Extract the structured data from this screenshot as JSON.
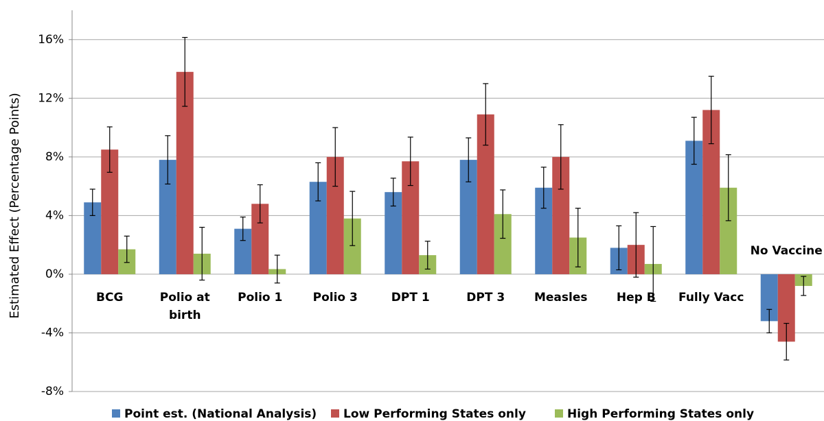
{
  "chart_data": {
    "type": "bar",
    "y_label": "Estimated Effect (Percentage Points)",
    "categories": [
      "BCG",
      "Polio at birth",
      "Polio 1",
      "Polio 3",
      "DPT 1",
      "DPT 3",
      "Measles",
      "Hep B",
      "Fully Vacc",
      "No Vaccine"
    ],
    "series": [
      {
        "name": "Point est. (National Analysis)",
        "color": "#4f81bd",
        "values": [
          4.9,
          7.8,
          3.1,
          6.3,
          5.6,
          7.8,
          5.9,
          1.8,
          9.1,
          -3.2
        ],
        "errors": [
          0.9,
          1.65,
          0.8,
          1.3,
          0.95,
          1.5,
          1.4,
          1.5,
          1.6,
          0.8
        ]
      },
      {
        "name": "Low Performing States only",
        "color": "#c0504d",
        "values": [
          8.5,
          13.8,
          4.8,
          8.0,
          7.7,
          10.9,
          8.0,
          2.0,
          11.2,
          -4.6
        ],
        "errors": [
          1.55,
          2.35,
          1.3,
          2.0,
          1.65,
          2.1,
          2.2,
          2.2,
          2.3,
          1.25
        ]
      },
      {
        "name": "High Performing States only",
        "color": "#9bbb59",
        "values": [
          1.7,
          1.4,
          0.35,
          3.8,
          1.3,
          4.1,
          2.5,
          0.7,
          5.9,
          -0.8
        ],
        "errors": [
          0.9,
          1.8,
          0.95,
          1.85,
          0.95,
          1.65,
          2.0,
          2.55,
          2.25,
          0.65
        ]
      }
    ],
    "ylim": [
      -8,
      18
    ],
    "yticks": [
      {
        "value": -8,
        "label": "-8%"
      },
      {
        "value": -4,
        "label": "-4%"
      },
      {
        "value": 0,
        "label": "0%"
      },
      {
        "value": 4,
        "label": "4%"
      },
      {
        "value": 8,
        "label": "8%"
      },
      {
        "value": 12,
        "label": "12%"
      },
      {
        "value": 16,
        "label": "16%"
      }
    ],
    "grid": true,
    "legend": "bottom"
  }
}
